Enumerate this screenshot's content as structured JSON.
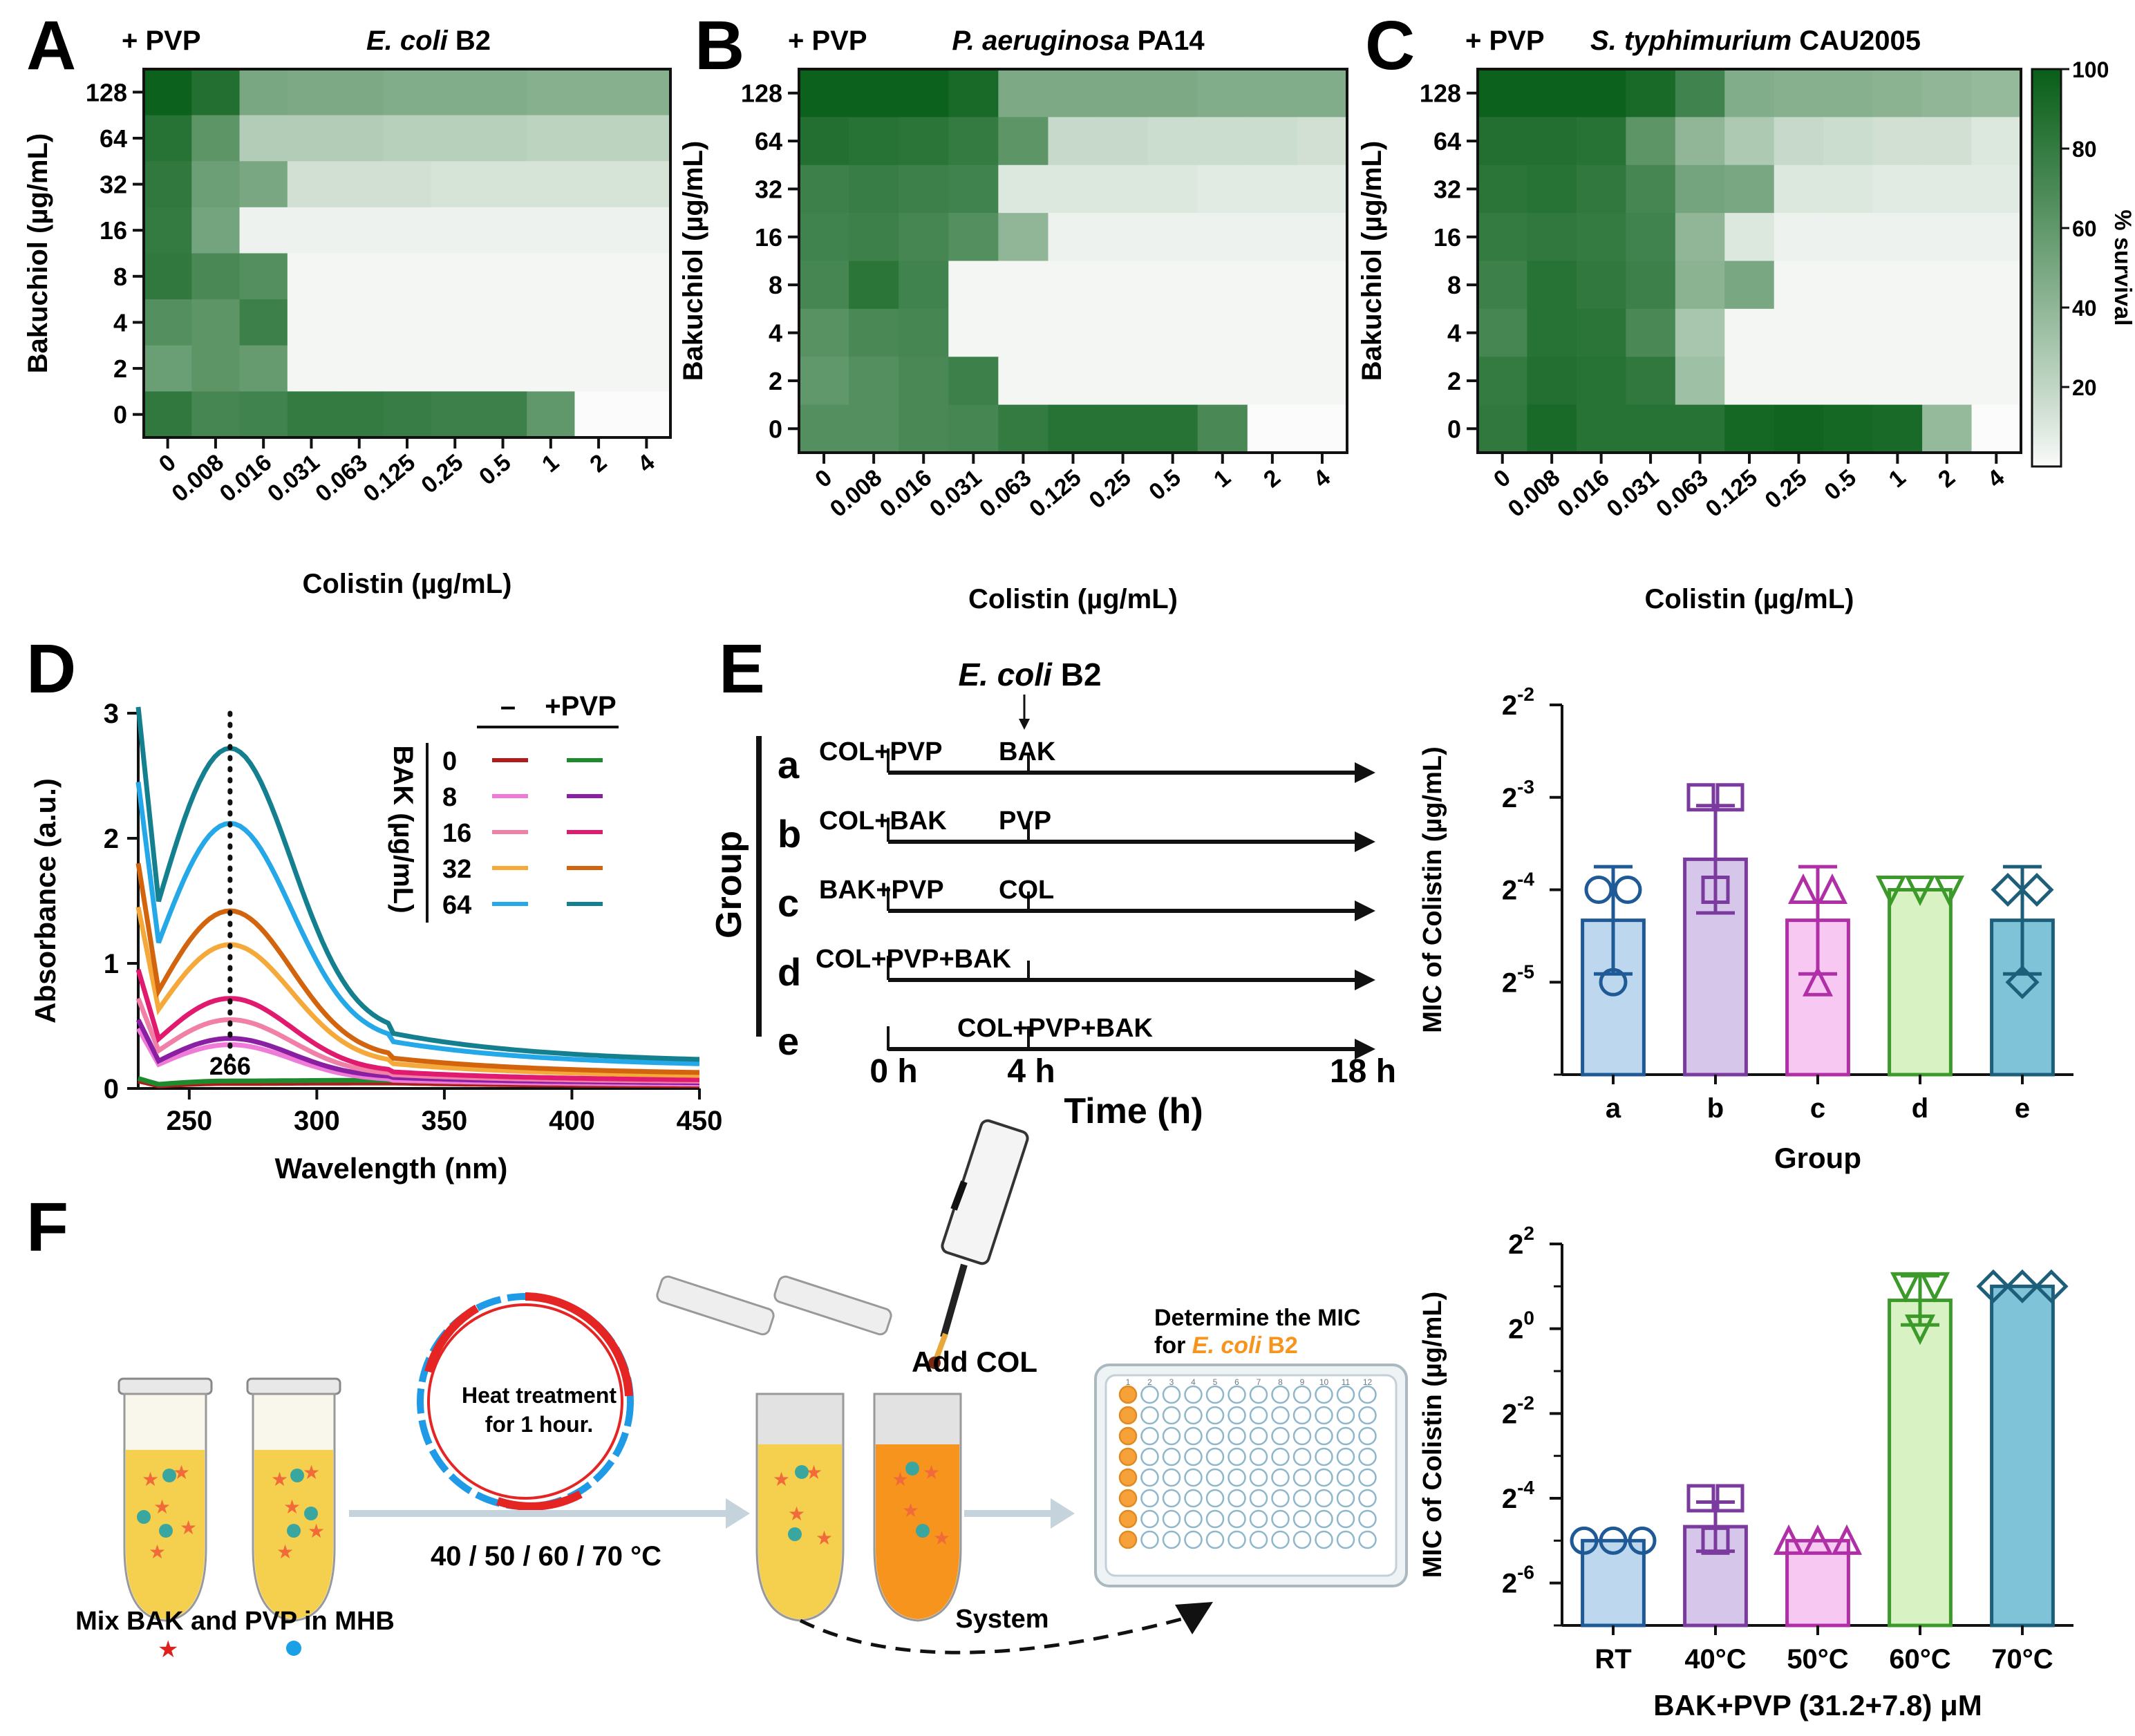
{
  "panel_letters": [
    "A",
    "B",
    "C",
    "D",
    "E",
    "F"
  ],
  "chart_data": [
    {
      "id": "A",
      "type": "heatmap",
      "tag": "+ PVP",
      "title_italic": "E. coli",
      "title_rest": " B2",
      "xlabel": "Colistin (µg/mL)",
      "ylabel": "Bakuchiol (µg/mL)",
      "x_ticks": [
        "0",
        "0.008",
        "0.016",
        "0.031",
        "0.063",
        "0.125",
        "0.25",
        "0.5",
        "1",
        "2",
        "4"
      ],
      "y_ticks": [
        "128",
        "64",
        "32",
        "16",
        "8",
        "4",
        "2",
        "0"
      ],
      "values": [
        [
          98,
          88,
          50,
          48,
          48,
          46,
          46,
          46,
          44,
          44,
          44
        ],
        [
          86,
          62,
          26,
          26,
          26,
          24,
          24,
          24,
          22,
          22,
          22
        ],
        [
          82,
          55,
          50,
          14,
          14,
          14,
          12,
          12,
          12,
          12,
          12
        ],
        [
          80,
          52,
          4,
          4,
          4,
          4,
          4,
          4,
          4,
          4,
          4
        ],
        [
          82,
          70,
          66,
          2,
          2,
          2,
          2,
          2,
          2,
          2,
          2
        ],
        [
          66,
          62,
          76,
          2,
          2,
          2,
          2,
          2,
          2,
          2,
          2
        ],
        [
          56,
          62,
          58,
          2,
          2,
          2,
          2,
          2,
          2,
          2,
          2
        ],
        [
          82,
          72,
          74,
          80,
          80,
          78,
          76,
          76,
          60,
          0,
          0
        ]
      ]
    },
    {
      "id": "B",
      "type": "heatmap",
      "tag": "+ PVP",
      "title_italic": "P. aeruginosa",
      "title_rest": " PA14",
      "xlabel": "Colistin (µg/mL)",
      "ylabel": "Bakuchiol (µg/mL)",
      "x_ticks": [
        "0",
        "0.008",
        "0.016",
        "0.031",
        "0.063",
        "0.125",
        "0.25",
        "0.5",
        "1",
        "2",
        "4"
      ],
      "y_ticks": [
        "128",
        "64",
        "32",
        "16",
        "8",
        "4",
        "2",
        "0"
      ],
      "values": [
        [
          98,
          98,
          98,
          92,
          48,
          48,
          48,
          48,
          46,
          46,
          46
        ],
        [
          88,
          86,
          84,
          80,
          62,
          18,
          18,
          16,
          16,
          16,
          14
        ],
        [
          76,
          78,
          76,
          74,
          10,
          10,
          10,
          10,
          8,
          8,
          8
        ],
        [
          74,
          76,
          72,
          66,
          40,
          4,
          4,
          4,
          4,
          4,
          4
        ],
        [
          72,
          84,
          74,
          2,
          2,
          2,
          2,
          2,
          2,
          2,
          2
        ],
        [
          64,
          70,
          72,
          2,
          2,
          2,
          2,
          2,
          2,
          2,
          2
        ],
        [
          60,
          66,
          70,
          76,
          2,
          2,
          2,
          2,
          2,
          2,
          2
        ],
        [
          66,
          66,
          70,
          72,
          80,
          86,
          86,
          86,
          70,
          0,
          0
        ]
      ]
    },
    {
      "id": "C",
      "type": "heatmap",
      "tag": "+ PVP",
      "title_italic": "S. typhimurium",
      "title_rest": " CAU2005",
      "xlabel": "Colistin (µg/mL)",
      "ylabel": "Bakuchiol (µg/mL)",
      "x_ticks": [
        "0",
        "0.008",
        "0.016",
        "0.031",
        "0.063",
        "0.125",
        "0.25",
        "0.5",
        "1",
        "2",
        "4"
      ],
      "y_ticks": [
        "128",
        "64",
        "32",
        "16",
        "8",
        "4",
        "2",
        "0"
      ],
      "values": [
        [
          98,
          98,
          98,
          92,
          74,
          46,
          44,
          44,
          42,
          40,
          38
        ],
        [
          88,
          88,
          86,
          62,
          40,
          28,
          18,
          16,
          14,
          14,
          10
        ],
        [
          84,
          86,
          82,
          72,
          52,
          50,
          10,
          10,
          8,
          8,
          8
        ],
        [
          80,
          82,
          80,
          74,
          40,
          10,
          4,
          4,
          4,
          4,
          4
        ],
        [
          76,
          86,
          82,
          76,
          42,
          50,
          2,
          2,
          2,
          2,
          2
        ],
        [
          72,
          86,
          84,
          70,
          30,
          2,
          2,
          2,
          2,
          2,
          2
        ],
        [
          80,
          88,
          86,
          82,
          34,
          2,
          2,
          2,
          2,
          2,
          2
        ],
        [
          82,
          92,
          86,
          86,
          86,
          94,
          96,
          94,
          92,
          38,
          0
        ]
      ],
      "colorbar": {
        "label": "% survival",
        "min": 0,
        "max": 100,
        "ticks": [
          "100",
          "80",
          "60",
          "40",
          "20"
        ]
      }
    },
    {
      "id": "D",
      "type": "line",
      "xlabel": "Wavelength (nm)",
      "ylabel": "Absorbance (a.u.)",
      "xlim": [
        230,
        450
      ],
      "ylim": [
        0,
        3
      ],
      "x_ticks": [
        "250",
        "300",
        "350",
        "400",
        "450"
      ],
      "y_ticks": [
        "0",
        "1",
        "2",
        "3"
      ],
      "peak_label": "266",
      "legend": {
        "header_minus": "–",
        "header_plus": "+PVP",
        "group_label": "BAK (µg/mL)",
        "rows": [
          "0",
          "8",
          "16",
          "32",
          "64"
        ]
      },
      "series": [
        {
          "name": "0 –",
          "color": "#b01c1c",
          "peak": 0.04,
          "start": 0.06,
          "tail": 0.02
        },
        {
          "name": "0 +PVP",
          "color": "#1e8a2e",
          "peak": 0.06,
          "start": 0.08,
          "tail": 0.03
        },
        {
          "name": "8 –",
          "color": "#f07ad8",
          "peak": 0.35,
          "start": 0.48,
          "tail": 0.03
        },
        {
          "name": "8 +PVP",
          "color": "#8a1fa3",
          "peak": 0.4,
          "start": 0.55,
          "tail": 0.04
        },
        {
          "name": "16 –",
          "color": "#f080a8",
          "peak": 0.55,
          "start": 0.72,
          "tail": 0.05
        },
        {
          "name": "16 +PVP",
          "color": "#e01a6e",
          "peak": 0.72,
          "start": 0.95,
          "tail": 0.06
        },
        {
          "name": "32 –",
          "color": "#f5a93a",
          "peak": 1.15,
          "start": 1.45,
          "tail": 0.09
        },
        {
          "name": "32 +PVP",
          "color": "#d3640e",
          "peak": 1.42,
          "start": 1.8,
          "tail": 0.11
        },
        {
          "name": "64 –",
          "color": "#25a8e8",
          "peak": 2.12,
          "start": 2.45,
          "tail": 0.17
        },
        {
          "name": "64 +PVP",
          "color": "#14808f",
          "peak": 2.72,
          "start": 3.05,
          "tail": 0.2
        }
      ]
    },
    {
      "id": "E-bar",
      "type": "bar",
      "xlabel": "Group",
      "ylabel": "MIC of Colistin (µg/mL)",
      "categories": [
        "a",
        "b",
        "c",
        "d",
        "e"
      ],
      "y_log2_range": [
        -6,
        -2
      ],
      "y_tick_exponents": [
        "-2",
        "-3",
        "-4",
        "-5"
      ],
      "mean_log2": [
        -4.33,
        -3.67,
        -4.33,
        -4.0,
        -4.33
      ],
      "sd_log2": [
        0.58,
        0.58,
        0.58,
        0,
        0.58
      ],
      "points_log2": [
        [
          -4,
          -4,
          -5
        ],
        [
          -3,
          -3,
          -4
        ],
        [
          -4,
          -4,
          -5
        ],
        [
          -4,
          -4,
          -4
        ],
        [
          -4,
          -4,
          -5
        ]
      ],
      "fills": [
        "#bcd7ee",
        "#d6c6ea",
        "#f7c8f2",
        "#d9f2c4",
        "#7fc3d8"
      ],
      "strokes": [
        "#1f5a96",
        "#7a3a9e",
        "#b12fa6",
        "#3c9a2a",
        "#1d5f7a"
      ],
      "markers": [
        "circle",
        "square",
        "triangle",
        "triangle-down",
        "diamond"
      ]
    },
    {
      "id": "F-bar",
      "type": "bar",
      "xlabel": "BAK+PVP (31.2+7.8) μM",
      "ylabel": "MIC of Colistin (µg/mL)",
      "categories": [
        "RT",
        "40°C",
        "50°C",
        "60°C",
        "70°C"
      ],
      "y_log2_range": [
        -7,
        2
      ],
      "y_tick_exponents": [
        "2",
        "0",
        "-2",
        "-4",
        "-6"
      ],
      "mean_log2": [
        -5.0,
        -4.67,
        -5.0,
        0.67,
        1.0
      ],
      "sd_log2": [
        0,
        0.58,
        0,
        0.58,
        0
      ],
      "points_log2": [
        [
          -5,
          -5,
          -5
        ],
        [
          -4,
          -4,
          -5
        ],
        [
          -5,
          -5,
          -5
        ],
        [
          1,
          0,
          1
        ],
        [
          1,
          1,
          1
        ]
      ],
      "fills": [
        "#bcd7ee",
        "#d6c6ea",
        "#f7c8f2",
        "#d9f2c4",
        "#7fc3d8"
      ],
      "strokes": [
        "#1f5a96",
        "#7a3a9e",
        "#b12fa6",
        "#3c9a2a",
        "#1d5f7a"
      ],
      "markers": [
        "circle",
        "square",
        "triangle",
        "triangle-down",
        "diamond"
      ]
    }
  ],
  "schematic_E": {
    "organism_italic": "E. coli",
    "organism_rest": " B2",
    "group_label": "Group",
    "rows": [
      {
        "letter": "a",
        "left": "COL+PVP",
        "right": "BAK"
      },
      {
        "letter": "b",
        "left": "COL+BAK",
        "right": "PVP"
      },
      {
        "letter": "c",
        "left": "BAK+PVP",
        "right": "COL"
      },
      {
        "letter": "d",
        "left": "COL+PVP+BAK",
        "right": ""
      },
      {
        "letter": "e",
        "left": "",
        "right": "COL+PVP+BAK"
      }
    ],
    "time_ticks": [
      "0 h",
      "4 h",
      "18 h"
    ],
    "time_label": "Time (h)"
  },
  "schematic_F": {
    "heat_text_1": "Heat treatment",
    "heat_text_2": "for 1 hour.",
    "temps": "40 / 50 / 60 / 70 °C",
    "mix_text": "Mix BAK and PVP in MHB",
    "add_col": "Add COL",
    "determine_1": "Determine the MIC",
    "determine_2_pre": "for ",
    "determine_2_org": "E. coli",
    "determine_2_post": " B2",
    "system": "System",
    "plate_cols": [
      "1",
      "2",
      "3",
      "4",
      "5",
      "6",
      "7",
      "8",
      "9",
      "10",
      "11",
      "12"
    ]
  }
}
